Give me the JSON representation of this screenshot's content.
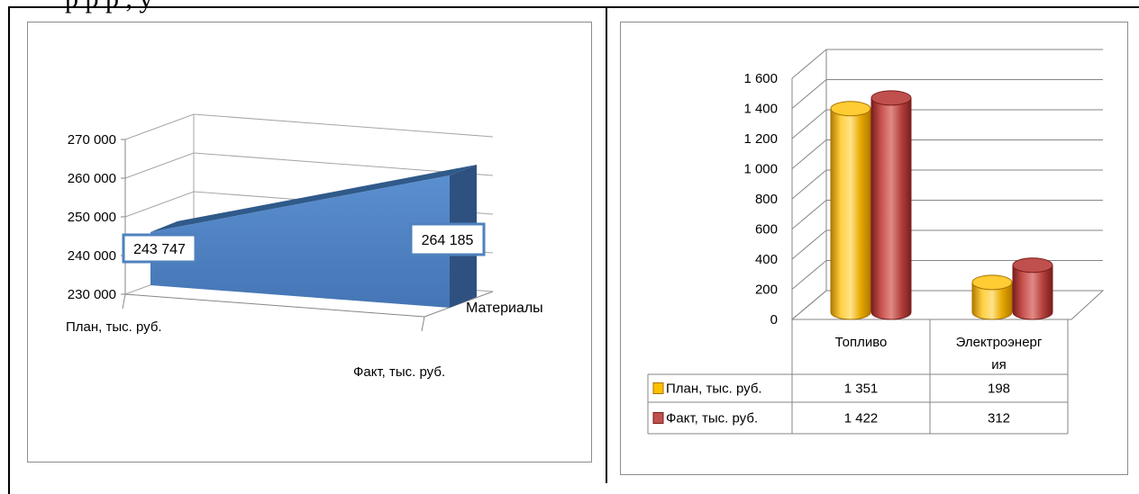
{
  "chart_data": [
    {
      "type": "area",
      "categories": [
        "План, тыс. руб.",
        "Факт, тыс. руб."
      ],
      "series": [
        {
          "name": "Материалы",
          "values": [
            243747,
            264185
          ]
        }
      ],
      "data_labels": [
        "243 747",
        "264 185"
      ],
      "yticks": [
        "230 000",
        "240 000",
        "250 000",
        "260 000",
        "270 000"
      ],
      "ylim": [
        230000,
        270000
      ],
      "grid": true,
      "color": "#4f81bd"
    },
    {
      "type": "bar",
      "categories": [
        "Топливо",
        "Электроэнергия"
      ],
      "category_labels": [
        [
          "Топливо"
        ],
        [
          "Электроэнерг",
          "ия"
        ]
      ],
      "series": [
        {
          "name": "План, тыс. руб.",
          "values": [
            1351,
            198
          ],
          "labels": [
            "1 351",
            "198"
          ],
          "color": "#ffc000"
        },
        {
          "name": "Факт, тыс. руб.",
          "values": [
            1422,
            312
          ],
          "labels": [
            "1 422",
            "312"
          ],
          "color": "#c0504d"
        }
      ],
      "yticks": [
        "0",
        "200",
        "400",
        "600",
        "800",
        "1 000",
        "1 200",
        "1 400",
        "1 600"
      ],
      "ylim": [
        0,
        1600
      ],
      "grid": true,
      "legend": "data-table"
    }
  ]
}
